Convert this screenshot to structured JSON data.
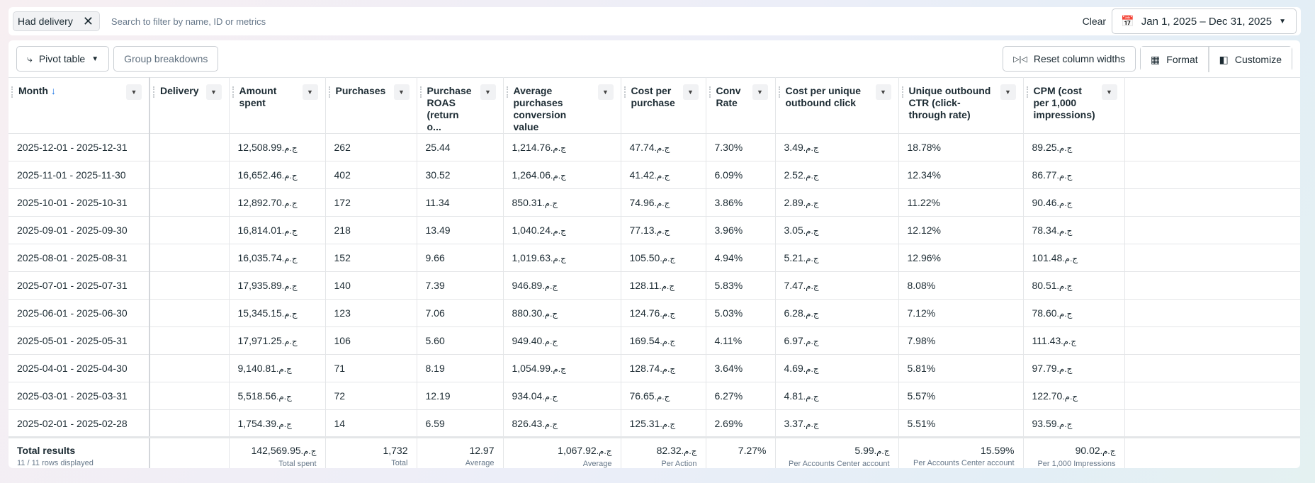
{
  "filter": {
    "chip_label": "Had delivery",
    "search_placeholder": "Search to filter by name, ID or metrics",
    "clear_label": "Clear",
    "date_range": "Jan 1, 2025 – Dec 31, 2025"
  },
  "toolbar": {
    "pivot_label": "Pivot table",
    "group_label": "Group breakdowns",
    "reset_label": "Reset column widths",
    "format_label": "Format",
    "customize_label": "Customize"
  },
  "currency": "ج.م.",
  "columns": [
    "Month",
    "Delivery",
    "Amount spent",
    "Purchases",
    "Purchase ROAS (return o...",
    "Average purchases conversion value",
    "Cost per purchase",
    "Conv Rate",
    "Cost per unique outbound click",
    "Unique outbound CTR (click-through rate)",
    "CPM (cost per 1,000 impressions)"
  ],
  "sort_indicator": "↓",
  "rows": [
    [
      "2025-12-01 - 2025-12-31",
      "",
      "12,508.99",
      "262",
      "25.44",
      "1,214.76",
      "47.74",
      "7.30%",
      "3.49",
      "18.78%",
      "89.25"
    ],
    [
      "2025-11-01 - 2025-11-30",
      "",
      "16,652.46",
      "402",
      "30.52",
      "1,264.06",
      "41.42",
      "6.09%",
      "2.52",
      "12.34%",
      "86.77"
    ],
    [
      "2025-10-01 - 2025-10-31",
      "",
      "12,892.70",
      "172",
      "11.34",
      "850.31",
      "74.96",
      "3.86%",
      "2.89",
      "11.22%",
      "90.46"
    ],
    [
      "2025-09-01 - 2025-09-30",
      "",
      "16,814.01",
      "218",
      "13.49",
      "1,040.24",
      "77.13",
      "3.96%",
      "3.05",
      "12.12%",
      "78.34"
    ],
    [
      "2025-08-01 - 2025-08-31",
      "",
      "16,035.74",
      "152",
      "9.66",
      "1,019.63",
      "105.50",
      "4.94%",
      "5.21",
      "12.96%",
      "101.48"
    ],
    [
      "2025-07-01 - 2025-07-31",
      "",
      "17,935.89",
      "140",
      "7.39",
      "946.89",
      "128.11",
      "5.83%",
      "7.47",
      "8.08%",
      "80.51"
    ],
    [
      "2025-06-01 - 2025-06-30",
      "",
      "15,345.15",
      "123",
      "7.06",
      "880.30",
      "124.76",
      "5.03%",
      "6.28",
      "7.12%",
      "78.60"
    ],
    [
      "2025-05-01 - 2025-05-31",
      "",
      "17,971.25",
      "106",
      "5.60",
      "949.40",
      "169.54",
      "4.11%",
      "6.97",
      "7.98%",
      "111.43"
    ],
    [
      "2025-04-01 - 2025-04-30",
      "",
      "9,140.81",
      "71",
      "8.19",
      "1,054.99",
      "128.74",
      "3.64%",
      "4.69",
      "5.81%",
      "97.79"
    ],
    [
      "2025-03-01 - 2025-03-31",
      "",
      "5,518.56",
      "72",
      "12.19",
      "934.04",
      "76.65",
      "6.27%",
      "4.81",
      "5.57%",
      "122.70"
    ],
    [
      "2025-02-01 - 2025-02-28",
      "",
      "1,754.39",
      "14",
      "6.59",
      "826.43",
      "125.31",
      "2.69%",
      "3.37",
      "5.51%",
      "93.59"
    ]
  ],
  "currency_columns": [
    2,
    5,
    6,
    8,
    10
  ],
  "totals": {
    "title": "Total results",
    "subtitle": "11 / 11 rows displayed",
    "cells": [
      [
        "",
        ""
      ],
      [
        "142,569.95",
        "Total spent"
      ],
      [
        "1,732",
        "Total"
      ],
      [
        "12.97",
        "Average"
      ],
      [
        "1,067.92",
        "Average"
      ],
      [
        "82.32",
        "Per Action"
      ],
      [
        "7.27%",
        ""
      ],
      [
        "5.99",
        "Per Accounts Center account"
      ],
      [
        "15.59%",
        "Per Accounts Center account"
      ],
      [
        "90.02",
        "Per 1,000 Impressions"
      ]
    ]
  }
}
